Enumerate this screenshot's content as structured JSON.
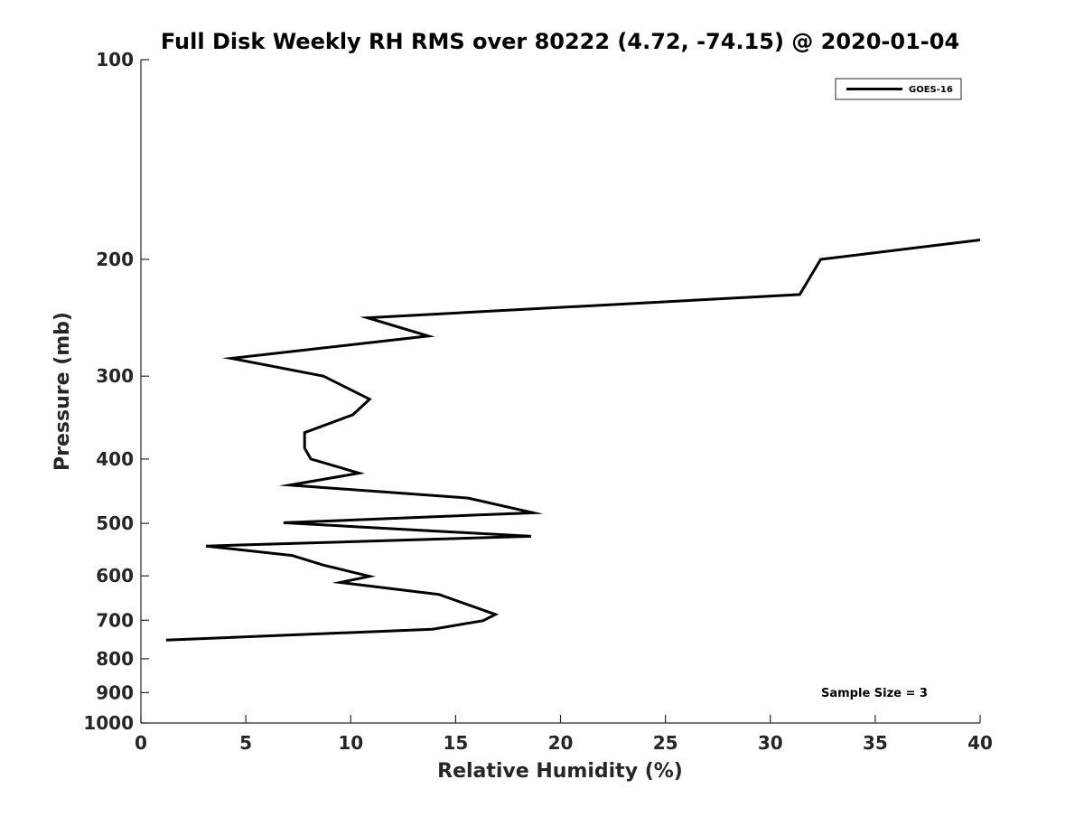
{
  "chart_data": {
    "type": "line",
    "title": "Full Disk Weekly RH RMS over 80222 (4.72, -74.15) @ 2020-01-04",
    "xlabel": "Relative Humidity (%)",
    "ylabel": "Pressure (mb)",
    "xlim": [
      0,
      40
    ],
    "ylim": [
      1000,
      100
    ],
    "yscale": "log",
    "y_reversed": true,
    "xticks": [
      0,
      5,
      10,
      15,
      20,
      25,
      30,
      35,
      40
    ],
    "yticks": [
      100,
      200,
      300,
      400,
      500,
      600,
      700,
      800,
      900,
      1000
    ],
    "grid": false,
    "legend_position": "top-right",
    "annotation": "Sample Size = 3",
    "series": [
      {
        "name": "GOES-16",
        "color": "#000000",
        "x": [
          1.2,
          13.9,
          16.3,
          16.9,
          14.2,
          9.5,
          10.9,
          8.7,
          7.2,
          3.1,
          18.6,
          6.8,
          18.7,
          15.6,
          7.1,
          10.4,
          8.1,
          7.8,
          7.8,
          10.1,
          10.9,
          8.7,
          4.3,
          13.7,
          10.8,
          31.4,
          32.4,
          40.0
        ],
        "y": [
          750,
          722,
          701,
          686,
          640,
          614,
          601,
          578,
          559,
          541,
          523,
          499,
          482,
          458,
          438,
          420,
          400,
          385,
          365,
          343,
          325,
          300,
          282,
          261,
          245,
          226,
          200,
          187
        ]
      }
    ]
  }
}
